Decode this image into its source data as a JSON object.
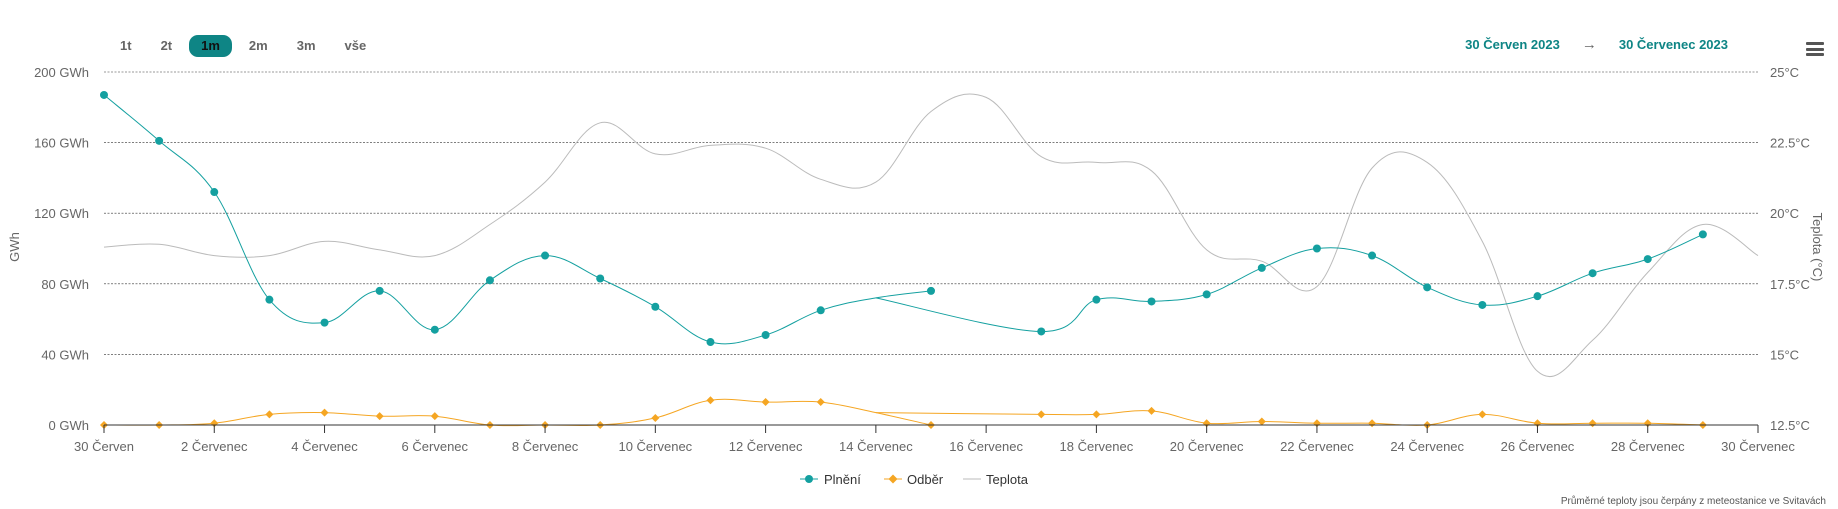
{
  "range_selector": {
    "buttons": [
      "1t",
      "2t",
      "1m",
      "2m",
      "3m",
      "vše"
    ],
    "active": "1m"
  },
  "date_range": {
    "from": "30 Červen 2023",
    "arrow": "→",
    "to": "30 Červenec 2023"
  },
  "menu_icon": "hamburger-menu-icon",
  "credit": "Průměrné teploty jsou čerpány z meteostanice ve Svitavách",
  "chart_data": {
    "type": "line",
    "x": {
      "unit": "day",
      "min": 0,
      "max": 30,
      "tick_positions": [
        0,
        2,
        4,
        6,
        8,
        10,
        12,
        14,
        16,
        18,
        20,
        22,
        24,
        26,
        28,
        30
      ],
      "tick_labels": [
        "30 Červen",
        "2 Červenec",
        "4 Červenec",
        "6 Červenec",
        "8 Červenec",
        "10 Červenec",
        "12 Červenec",
        "14 Červenec",
        "16 Červenec",
        "18 Červenec",
        "20 Červenec",
        "22 Červenec",
        "24 Červenec",
        "26 Červenec",
        "28 Červenec",
        "30 Červenec"
      ]
    },
    "y_left": {
      "title": "GWh",
      "min": 0,
      "max": 200,
      "ticks": [
        0,
        40,
        80,
        120,
        160,
        200
      ],
      "tick_labels": [
        "0 GWh",
        "40 GWh",
        "80 GWh",
        "120 GWh",
        "160 GWh",
        "200 GWh"
      ]
    },
    "y_right": {
      "title": "Teplota (°C)",
      "min": 12.5,
      "max": 25,
      "ticks": [
        12.5,
        15,
        17.5,
        20,
        22.5,
        25
      ],
      "tick_labels": [
        "12.5°C",
        "15°C",
        "17.5°C",
        "20°C",
        "22.5°C",
        "25°C"
      ]
    },
    "grid": true,
    "legend_position": "bottom-center",
    "series": [
      {
        "name": "Plnění",
        "axis": "left",
        "color": "#14a0a0",
        "marker": "circle",
        "segments": [
          [
            [
              0,
              187
            ],
            [
              1,
              161
            ],
            [
              2,
              132
            ],
            [
              3,
              71
            ],
            [
              4,
              58
            ],
            [
              5,
              76
            ],
            [
              6,
              54
            ],
            [
              7,
              82
            ],
            [
              8,
              96
            ],
            [
              9,
              83
            ],
            [
              10,
              67
            ],
            [
              11,
              47
            ],
            [
              12,
              51
            ],
            [
              13,
              65
            ],
            [
              14,
              72
            ],
            [
              15,
              76
            ]
          ],
          [
            [
              14,
              72
            ],
            [
              17,
              53
            ],
            [
              18,
              71
            ],
            [
              19,
              70
            ],
            [
              20,
              74
            ],
            [
              21,
              89
            ],
            [
              22,
              100
            ],
            [
              23,
              96
            ],
            [
              24,
              78
            ],
            [
              25,
              68
            ],
            [
              26,
              73
            ],
            [
              27,
              86
            ],
            [
              28,
              94
            ],
            [
              29,
              108
            ]
          ]
        ],
        "hidden_markers": [
          [
            14,
            72
          ]
        ]
      },
      {
        "name": "Odběr",
        "axis": "left",
        "color": "#f5a623",
        "marker": "diamond",
        "segments": [
          [
            [
              0,
              0
            ],
            [
              1,
              0
            ],
            [
              2,
              1
            ],
            [
              3,
              6
            ],
            [
              4,
              7
            ],
            [
              5,
              5
            ],
            [
              6,
              5
            ],
            [
              7,
              0
            ],
            [
              8,
              0
            ],
            [
              9,
              0
            ],
            [
              10,
              4
            ],
            [
              11,
              14
            ],
            [
              12,
              13
            ],
            [
              13,
              13
            ],
            [
              14,
              7
            ],
            [
              15,
              0
            ]
          ],
          [
            [
              14,
              7
            ],
            [
              17,
              6
            ],
            [
              18,
              6
            ],
            [
              19,
              8
            ],
            [
              20,
              1
            ],
            [
              21,
              2
            ],
            [
              22,
              1
            ],
            [
              23,
              1
            ],
            [
              24,
              0
            ],
            [
              25,
              6
            ],
            [
              26,
              1
            ],
            [
              27,
              1
            ],
            [
              28,
              1
            ],
            [
              29,
              0
            ]
          ]
        ],
        "hidden_markers": [
          [
            14,
            7
          ]
        ]
      },
      {
        "name": "Teplota",
        "axis": "right",
        "color": "#bbbbbb",
        "marker": "none",
        "segments": [
          [
            [
              0,
              18.8
            ],
            [
              1,
              18.9
            ],
            [
              2,
              18.5
            ],
            [
              3,
              18.5
            ],
            [
              4,
              19.0
            ],
            [
              5,
              18.7
            ],
            [
              6,
              18.5
            ],
            [
              7,
              19.6
            ],
            [
              8,
              21.1
            ],
            [
              9,
              23.2
            ],
            [
              10,
              22.1
            ],
            [
              11,
              22.4
            ],
            [
              12,
              22.3
            ],
            [
              13,
              21.2
            ],
            [
              14,
              21.1
            ],
            [
              15,
              23.6
            ],
            [
              16,
              24.1
            ],
            [
              17,
              22.0
            ],
            [
              18,
              21.8
            ],
            [
              19,
              21.5
            ],
            [
              20,
              18.7
            ],
            [
              21,
              18.3
            ],
            [
              22,
              17.4
            ],
            [
              23,
              21.6
            ],
            [
              24,
              21.8
            ],
            [
              25,
              19.0
            ],
            [
              26,
              14.4
            ],
            [
              27,
              15.5
            ],
            [
              28,
              17.9
            ],
            [
              29,
              19.6
            ],
            [
              30,
              18.5
            ]
          ]
        ]
      }
    ]
  }
}
